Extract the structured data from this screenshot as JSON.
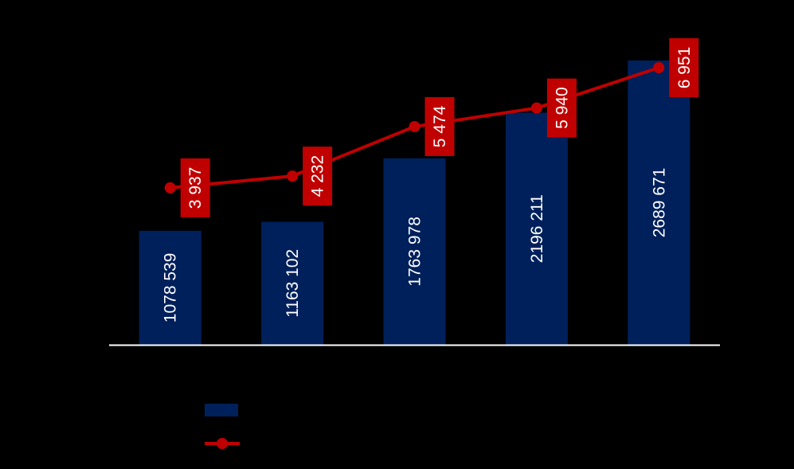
{
  "chart_data": {
    "type": "bar",
    "categories": [
      "",
      "",
      "",
      "",
      ""
    ],
    "bar_series": {
      "values": [
        1078539,
        1163102,
        1763978,
        2196211,
        2689671
      ],
      "labels": [
        "1078 539",
        "1163 102",
        "1763 978",
        "2196 211",
        "2689 671"
      ],
      "color": "#00205b"
    },
    "line_series": {
      "values": [
        3937,
        4232,
        5474,
        5940,
        6951
      ],
      "labels": [
        "3 937",
        "4 232",
        "5 474",
        "5 940",
        "6 951"
      ],
      "color": "#c00000"
    },
    "bar_ylim": [
      0,
      2960000
    ],
    "line_ylim": [
      0,
      7850
    ],
    "legend": "bottom-left",
    "grid": false,
    "background": "#000000",
    "axis_color": "#ffffff"
  }
}
